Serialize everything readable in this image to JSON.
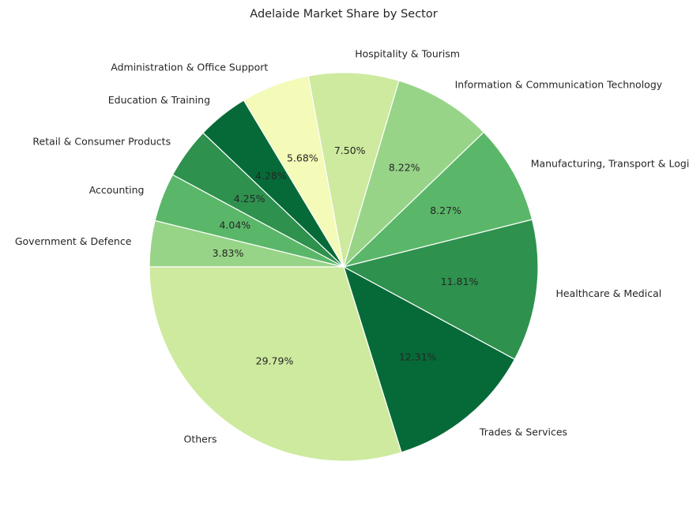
{
  "chart_data": {
    "type": "pie",
    "title": "Adelaide Market Share by Sector",
    "start_angle_deg": 180,
    "direction": "clockwise",
    "slices": [
      {
        "label": "Government & Defence",
        "value": 3.83,
        "pct_label": "3.83%",
        "color": "#97d487"
      },
      {
        "label": "Accounting",
        "value": 4.04,
        "pct_label": "4.04%",
        "color": "#5ab769"
      },
      {
        "label": "Retail & Consumer Products",
        "value": 4.25,
        "pct_label": "4.25%",
        "color": "#2e914e"
      },
      {
        "label": "Education & Training",
        "value": 4.28,
        "pct_label": "4.28%",
        "color": "#066a38"
      },
      {
        "label": "Administration & Office Support",
        "value": 5.68,
        "pct_label": "5.68%",
        "color": "#f4fab7"
      },
      {
        "label": "Hospitality & Tourism",
        "value": 7.5,
        "pct_label": "7.50%",
        "color": "#cdea9e"
      },
      {
        "label": "Information & Communication Technology",
        "value": 8.22,
        "pct_label": "8.22%",
        "color": "#97d487"
      },
      {
        "label": "Manufacturing, Transport & Logistics",
        "value": 8.27,
        "pct_label": "8.27%",
        "color": "#5ab769"
      },
      {
        "label": "Healthcare & Medical",
        "value": 11.81,
        "pct_label": "11.81%",
        "color": "#2e914e"
      },
      {
        "label": "Trades & Services",
        "value": 12.31,
        "pct_label": "12.31%",
        "color": "#066a38"
      },
      {
        "label": "Others",
        "value": 29.79,
        "pct_label": "29.79%",
        "color": "#cdea9e"
      }
    ]
  }
}
